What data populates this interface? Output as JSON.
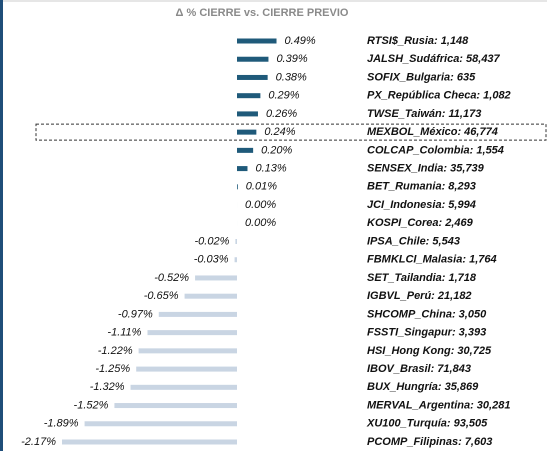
{
  "chart_data": {
    "type": "bar",
    "orientation": "horizontal",
    "title": "Δ % CIERRE vs. CIERRE PREVIO",
    "categories": [
      "RTSI$_Rusia: 1,148",
      "JALSH_Sudáfrica: 58,437",
      "SOFIX_Bulgaria: 635",
      "PX_República Checa: 1,082",
      "TWSE_Taiwán: 11,173",
      "MEXBOL_México: 46,774",
      "COLCAP_Colombia: 1,554",
      "SENSEX_India: 35,739",
      "BET_Rumania: 8,293",
      "JCI_Indonesia: 5,994",
      "KOSPI_Corea: 2,469",
      "IPSA_Chile: 5,543",
      "FBMKLCI_Malasia: 1,764",
      "SET_Tailandia: 1,718",
      "IGBVL_Perú: 21,182",
      "SHCOMP_China: 3,050",
      "FSSTI_Singapur: 3,393",
      "HSI_Hong Kong: 30,725",
      "IBOV_Brasil: 71,843",
      "BUX_Hungría: 35,869",
      "MERVAL_Argentina: 30,281",
      "XU100_Turquía: 93,505",
      "PCOMP_Filipinas: 7,603"
    ],
    "values": [
      0.49,
      0.39,
      0.38,
      0.29,
      0.26,
      0.24,
      0.2,
      0.13,
      0.01,
      0.0,
      0.0,
      -0.02,
      -0.03,
      -0.52,
      -0.65,
      -0.97,
      -1.11,
      -1.22,
      -1.25,
      -1.32,
      -1.52,
      -1.89,
      -2.17
    ],
    "value_labels": [
      "0.49%",
      "0.39%",
      "0.38%",
      "0.29%",
      "0.26%",
      "0.24%",
      "0.20%",
      "0.13%",
      "0.01%",
      "0.00%",
      "0.00%",
      "-0.02%",
      "-0.03%",
      "-0.52%",
      "-0.65%",
      "-0.97%",
      "-1.11%",
      "-1.22%",
      "-1.25%",
      "-1.32%",
      "-1.52%",
      "-1.89%",
      "-2.17%"
    ],
    "positive_color": "#1f5a7a",
    "negative_color": "#c9d5e3",
    "highlight_index": 5
  }
}
